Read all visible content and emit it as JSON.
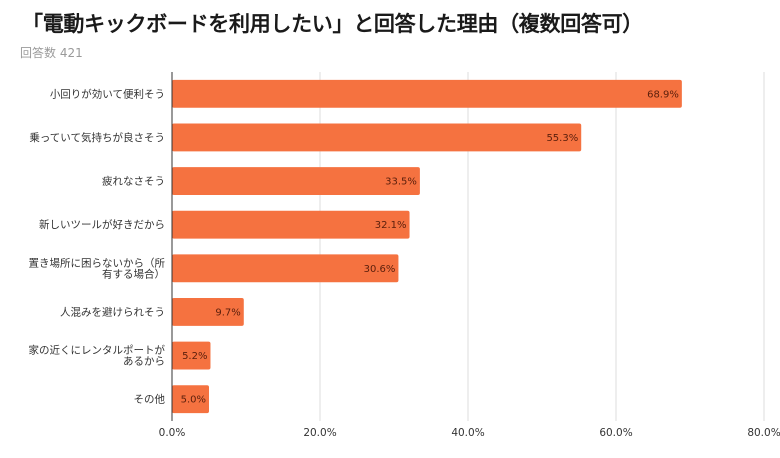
{
  "chart_data": {
    "type": "bar",
    "orientation": "horizontal",
    "title": "「電動キックボードを利用したい」と回答した理由（複数回答可）",
    "subtitle": "回答数 421",
    "categories": [
      [
        "小回りが効いて便利そう"
      ],
      [
        "乗っていて気持ちが良さそう"
      ],
      [
        "疲れなさそう"
      ],
      [
        "新しいツールが好きだから"
      ],
      [
        "置き場所に困らないから（所",
        "有する場合）"
      ],
      [
        "人混みを避けられそう"
      ],
      [
        "家の近くにレンタルポートが",
        "あるから"
      ],
      [
        "その他"
      ]
    ],
    "values": [
      68.9,
      55.3,
      33.5,
      32.1,
      30.6,
      9.7,
      5.2,
      5.0
    ],
    "value_labels": [
      "68.9%",
      "55.3%",
      "33.5%",
      "32.1%",
      "30.6%",
      "9.7%",
      "5.2%",
      "5.0%"
    ],
    "xlim": [
      0,
      80
    ],
    "xticks": [
      0,
      20,
      40,
      60,
      80
    ],
    "xtick_labels": [
      "0.0%",
      "20.0%",
      "40.0%",
      "60.0%",
      "80.0%"
    ],
    "xlabel": "",
    "ylabel": "",
    "grid": true,
    "legend": "none",
    "bar_color": "#f57240"
  }
}
